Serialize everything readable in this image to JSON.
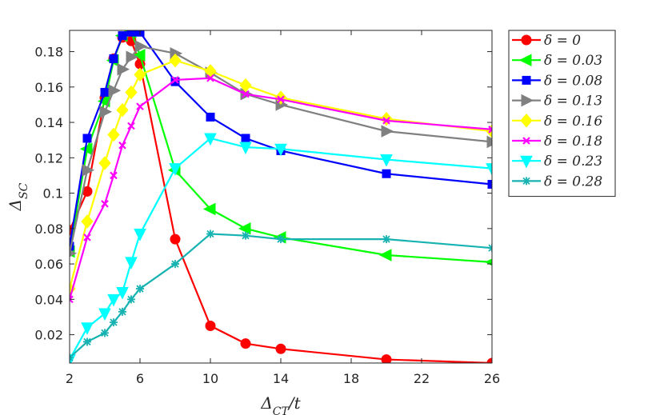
{
  "chart_data": {
    "type": "line",
    "xlabel": "Δ_CT/t",
    "ylabel": "Δ_SC",
    "xlim": [
      2,
      26
    ],
    "ylim": [
      0.004,
      0.192
    ],
    "xticks": [
      "2",
      "6",
      "10",
      "14",
      "18",
      "22",
      "26"
    ],
    "yticks": [
      "0.02",
      "0.04",
      "0.06",
      "0.08",
      "0.1",
      "0.12",
      "0.14",
      "0.16",
      "0.18"
    ],
    "legend_position": "outside-right-top",
    "grid": false,
    "series": [
      {
        "name": "δ = 0",
        "color": "#ff0000",
        "marker": "circle",
        "x": [
          2,
          3,
          4,
          4.5,
          5,
          5.5,
          6,
          8,
          10,
          12,
          14,
          20,
          26
        ],
        "y": [
          0.079,
          0.101,
          0.154,
          0.176,
          0.188,
          0.186,
          0.173,
          0.074,
          0.025,
          0.015,
          0.012,
          0.006,
          0.004
        ]
      },
      {
        "name": "δ = 0.03",
        "color": "#00ff00",
        "marker": "triangle-left",
        "x": [
          2,
          3,
          4,
          4.5,
          5,
          5.5,
          6,
          8,
          10,
          12,
          14,
          20,
          26
        ],
        "y": [
          0.067,
          0.125,
          0.152,
          0.175,
          0.189,
          0.191,
          0.178,
          0.113,
          0.091,
          0.08,
          0.075,
          0.065,
          0.061
        ]
      },
      {
        "name": "δ = 0.08",
        "color": "#0000ff",
        "marker": "square",
        "x": [
          2,
          3,
          4,
          4.5,
          5,
          5.5,
          6,
          8,
          10,
          12,
          14,
          20,
          26
        ],
        "y": [
          0.07,
          0.131,
          0.157,
          0.176,
          0.189,
          0.191,
          0.191,
          0.163,
          0.143,
          0.131,
          0.124,
          0.111,
          0.105
        ]
      },
      {
        "name": "δ = 0.13",
        "color": "#808080",
        "marker": "triangle-right",
        "x": [
          2,
          3,
          4,
          4.5,
          5,
          5.5,
          6,
          8,
          10,
          12,
          14,
          20,
          26
        ],
        "y": [
          0.066,
          0.113,
          0.146,
          0.158,
          0.17,
          0.177,
          0.183,
          0.179,
          0.168,
          0.156,
          0.15,
          0.135,
          0.129
        ]
      },
      {
        "name": "δ = 0.16",
        "color": "#ffff00",
        "marker": "diamond",
        "x": [
          2,
          3,
          4,
          4.5,
          5,
          5.5,
          6,
          8,
          10,
          12,
          14,
          20,
          26
        ],
        "y": [
          0.046,
          0.084,
          0.117,
          0.133,
          0.147,
          0.157,
          0.167,
          0.175,
          0.169,
          0.161,
          0.154,
          0.142,
          0.135
        ]
      },
      {
        "name": "δ = 0.18",
        "color": "#ff00ff",
        "marker": "x",
        "x": [
          2,
          3,
          4,
          4.5,
          5,
          5.5,
          6,
          8,
          10,
          12,
          14,
          20,
          26
        ],
        "y": [
          0.04,
          0.075,
          0.094,
          0.11,
          0.127,
          0.138,
          0.149,
          0.164,
          0.165,
          0.156,
          0.153,
          0.141,
          0.136
        ]
      },
      {
        "name": "δ = 0.23",
        "color": "#00ffff",
        "marker": "triangle-down",
        "x": [
          2,
          3,
          4,
          4.5,
          5,
          5.5,
          6,
          8,
          10,
          12,
          14,
          20,
          26
        ],
        "y": [
          0.006,
          0.024,
          0.032,
          0.04,
          0.044,
          0.061,
          0.077,
          0.114,
          0.131,
          0.126,
          0.125,
          0.119,
          0.114
        ]
      },
      {
        "name": "δ = 0.28",
        "color": "#17b2b2",
        "marker": "asterisk",
        "x": [
          2,
          3,
          4,
          4.5,
          5,
          5.5,
          6,
          8,
          10,
          12,
          14,
          20,
          26
        ],
        "y": [
          0.007,
          0.016,
          0.021,
          0.027,
          0.033,
          0.04,
          0.046,
          0.06,
          0.077,
          0.076,
          0.074,
          0.074,
          0.069
        ]
      }
    ]
  }
}
